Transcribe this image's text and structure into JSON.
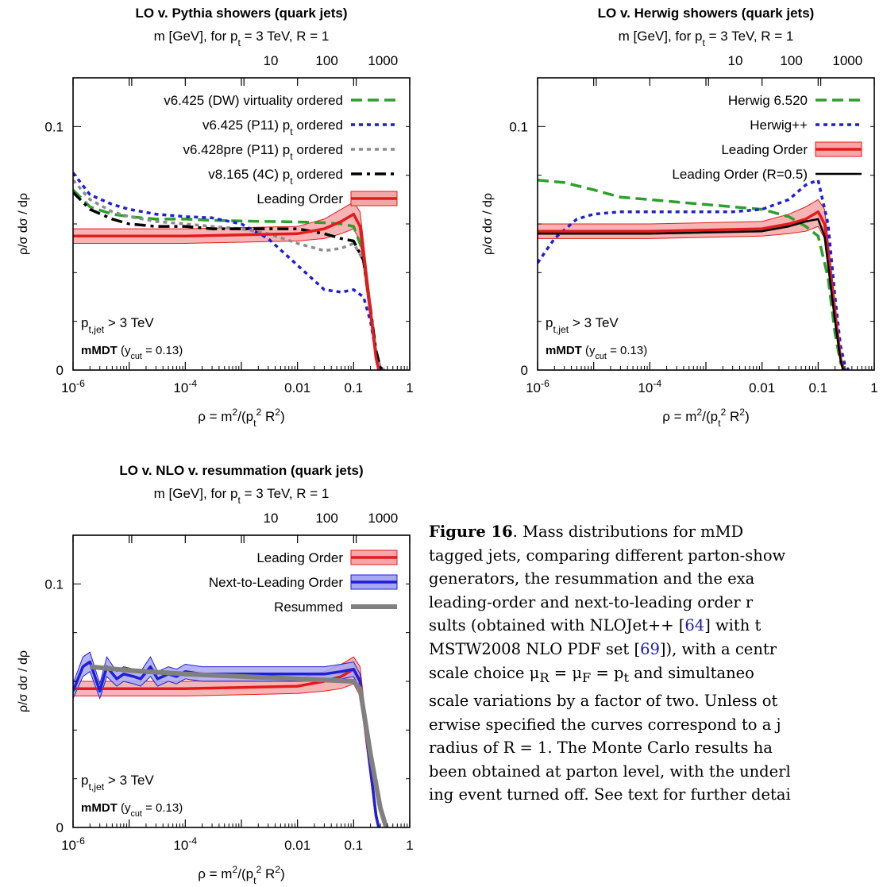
{
  "colors": {
    "lo_band": "#f4a7a7",
    "lo_line": "#e41a1c",
    "nlo_band": "#a8a8f0",
    "nlo_line": "#1f1fd6",
    "dw": "#2ca02c",
    "p11": "#1f1fd6",
    "p11pre": "#8c8c8c",
    "p8": "#000000",
    "herwig6": "#2ca02c",
    "herwigpp": "#1f1fd6",
    "resummed": "#808080"
  },
  "chart_data": [
    {
      "type": "line",
      "title": "LO v. Pythia showers (quark jets)",
      "xlabel": "ρ = m²/(p_t² R²)",
      "ylabel": "ρ/σ dσ / dρ",
      "x2label": "m [GeV], for p_t = 3 TeV, R = 1",
      "xscale": "log",
      "xlim": [
        1e-06,
        1
      ],
      "ylim": [
        0,
        0.12
      ],
      "x_ticklabels": [
        "10^-6",
        "10^-4",
        "0.01",
        "0.1",
        "1"
      ],
      "x2_ticklabels": [
        "10",
        "100",
        "1000"
      ],
      "y_ticklabels": [
        "0",
        "0.1"
      ],
      "annotations": [
        "p_t,jet > 3 TeV",
        "mMDT (y_cut = 0.13)"
      ],
      "legend_position": "top-right",
      "series": [
        {
          "name": "v6.425 (DW) virtuality ordered",
          "color": "#2ca02c",
          "style": "dashed",
          "x": [
            1e-06,
            2e-06,
            5e-06,
            1e-05,
            3e-05,
            0.0001,
            0.0003,
            0.001,
            0.003,
            0.01,
            0.03,
            0.06,
            0.1,
            0.15,
            0.2,
            0.25,
            0.3,
            0.35
          ],
          "y": [
            0.074,
            0.067,
            0.064,
            0.063,
            0.062,
            0.062,
            0.0615,
            0.0612,
            0.061,
            0.0608,
            0.0605,
            0.06,
            0.059,
            0.048,
            0.025,
            0.008,
            0.001,
            0
          ]
        },
        {
          "name": "v6.425 (P11) p_t ordered",
          "color": "#1f1fd6",
          "style": "dotted",
          "x": [
            1e-06,
            2e-06,
            5e-06,
            1e-05,
            3e-05,
            0.0001,
            0.0003,
            0.001,
            0.003,
            0.01,
            0.03,
            0.06,
            0.1,
            0.15,
            0.2,
            0.25,
            0.3,
            0.35
          ],
          "y": [
            0.081,
            0.072,
            0.068,
            0.066,
            0.064,
            0.063,
            0.0625,
            0.06,
            0.054,
            0.043,
            0.033,
            0.032,
            0.033,
            0.03,
            0.02,
            0.007,
            0.001,
            0
          ]
        },
        {
          "name": "v6.428pre (P11) p_t ordered",
          "color": "#8c8c8c",
          "style": "dotted",
          "x": [
            1e-06,
            2e-06,
            5e-06,
            1e-05,
            3e-05,
            0.0001,
            0.0003,
            0.001,
            0.003,
            0.01,
            0.03,
            0.06,
            0.1,
            0.15,
            0.2,
            0.25,
            0.3,
            0.35
          ],
          "y": [
            0.078,
            0.07,
            0.065,
            0.063,
            0.061,
            0.06,
            0.059,
            0.058,
            0.056,
            0.052,
            0.049,
            0.05,
            0.052,
            0.045,
            0.024,
            0.008,
            0.001,
            0
          ]
        },
        {
          "name": "v8.165 (4C) p_t ordered",
          "color": "#000000",
          "style": "dashdot",
          "x": [
            1e-06,
            2e-06,
            5e-06,
            1e-05,
            3e-05,
            0.0001,
            0.0003,
            0.001,
            0.003,
            0.01,
            0.03,
            0.06,
            0.1,
            0.15,
            0.2,
            0.25,
            0.3,
            0.35
          ],
          "y": [
            0.073,
            0.066,
            0.062,
            0.06,
            0.059,
            0.059,
            0.058,
            0.058,
            0.058,
            0.058,
            0.056,
            0.054,
            0.053,
            0.045,
            0.025,
            0.008,
            0.001,
            0
          ]
        },
        {
          "name": "Leading Order",
          "color": "#e41a1c",
          "style": "band",
          "x": [
            1e-06,
            1e-05,
            0.0001,
            0.001,
            0.01,
            0.03,
            0.06,
            0.1,
            0.13,
            0.2,
            0.25,
            0.28
          ],
          "y": [
            0.055,
            0.055,
            0.055,
            0.0555,
            0.056,
            0.058,
            0.061,
            0.064,
            0.059,
            0.024,
            0.005,
            0
          ],
          "y_low": [
            0.052,
            0.052,
            0.052,
            0.0525,
            0.053,
            0.054,
            0.056,
            0.058,
            0.053,
            0.02,
            0.003,
            0
          ],
          "y_high": [
            0.058,
            0.058,
            0.058,
            0.0585,
            0.059,
            0.062,
            0.066,
            0.069,
            0.065,
            0.028,
            0.007,
            0
          ]
        }
      ]
    },
    {
      "type": "line",
      "title": "LO v. Herwig showers (quark jets)",
      "xlabel": "ρ = m²/(p_t² R²)",
      "ylabel": "ρ/σ dσ / dρ",
      "x2label": "m [GeV], for p_t = 3 TeV, R = 1",
      "xscale": "log",
      "xlim": [
        1e-06,
        1
      ],
      "ylim": [
        0,
        0.12
      ],
      "x_ticklabels": [
        "10^-6",
        "10^-4",
        "0.01",
        "0.1",
        "1"
      ],
      "x2_ticklabels": [
        "10",
        "100",
        "1000"
      ],
      "y_ticklabels": [
        "0",
        "0.1"
      ],
      "annotations": [
        "p_t,jet > 3 TeV",
        "mMDT (y_cut = 0.13)"
      ],
      "legend_position": "top-right",
      "series": [
        {
          "name": "Herwig 6.520",
          "color": "#2ca02c",
          "style": "dashed",
          "x": [
            1e-06,
            3e-06,
            1e-05,
            3e-05,
            0.0001,
            0.0003,
            0.001,
            0.003,
            0.01,
            0.03,
            0.06,
            0.1,
            0.15,
            0.2,
            0.25,
            0.3
          ],
          "y": [
            0.078,
            0.077,
            0.074,
            0.071,
            0.07,
            0.069,
            0.068,
            0.067,
            0.066,
            0.063,
            0.059,
            0.055,
            0.038,
            0.015,
            0.003,
            0
          ]
        },
        {
          "name": "Herwig++",
          "color": "#1f1fd6",
          "style": "dotted",
          "x": [
            1e-06,
            2e-06,
            5e-06,
            1e-05,
            3e-05,
            0.0001,
            0.0003,
            0.001,
            0.003,
            0.01,
            0.03,
            0.06,
            0.1,
            0.15,
            0.2,
            0.25,
            0.3,
            0.35
          ],
          "y": [
            0.044,
            0.054,
            0.062,
            0.064,
            0.065,
            0.065,
            0.065,
            0.065,
            0.065,
            0.066,
            0.07,
            0.076,
            0.078,
            0.06,
            0.03,
            0.01,
            0.002,
            0
          ]
        },
        {
          "name": "Leading Order",
          "color": "#e41a1c",
          "style": "band",
          "x": [
            1e-06,
            1e-05,
            0.0001,
            0.001,
            0.01,
            0.03,
            0.06,
            0.1,
            0.13,
            0.2,
            0.25,
            0.28
          ],
          "y": [
            0.057,
            0.057,
            0.057,
            0.0575,
            0.058,
            0.06,
            0.062,
            0.065,
            0.06,
            0.024,
            0.005,
            0
          ],
          "y_low": [
            0.054,
            0.054,
            0.054,
            0.0545,
            0.055,
            0.056,
            0.057,
            0.059,
            0.054,
            0.02,
            0.003,
            0
          ],
          "y_high": [
            0.06,
            0.06,
            0.06,
            0.0605,
            0.061,
            0.064,
            0.067,
            0.07,
            0.066,
            0.028,
            0.007,
            0
          ]
        },
        {
          "name": "Leading Order (R=0.5)",
          "color": "#000000",
          "style": "solid",
          "x": [
            1e-06,
            1e-05,
            0.0001,
            0.001,
            0.01,
            0.03,
            0.06,
            0.1,
            0.13,
            0.2,
            0.25,
            0.28
          ],
          "y": [
            0.056,
            0.056,
            0.056,
            0.0565,
            0.057,
            0.059,
            0.061,
            0.062,
            0.055,
            0.02,
            0.004,
            0
          ]
        }
      ]
    },
    {
      "type": "line",
      "title": "LO v. NLO v. resummation (quark jets)",
      "xlabel": "ρ = m²/(p_t² R²)",
      "ylabel": "ρ/σ dσ / dρ",
      "x2label": "m [GeV], for p_t = 3 TeV, R = 1",
      "xscale": "log",
      "xlim": [
        1e-06,
        1
      ],
      "ylim": [
        0,
        0.12
      ],
      "x_ticklabels": [
        "10^-6",
        "10^-4",
        "0.01",
        "0.1",
        "1"
      ],
      "x2_ticklabels": [
        "10",
        "100",
        "1000"
      ],
      "y_ticklabels": [
        "0",
        "0.1"
      ],
      "annotations": [
        "p_t,jet > 3 TeV",
        "mMDT (y_cut = 0.13)"
      ],
      "legend_position": "top-right",
      "series": [
        {
          "name": "Leading Order",
          "color": "#e41a1c",
          "style": "band",
          "x": [
            1e-06,
            1e-05,
            0.0001,
            0.001,
            0.01,
            0.03,
            0.06,
            0.1,
            0.13,
            0.2,
            0.25,
            0.28
          ],
          "y": [
            0.057,
            0.057,
            0.057,
            0.0575,
            0.058,
            0.06,
            0.062,
            0.065,
            0.06,
            0.024,
            0.005,
            0
          ],
          "y_low": [
            0.054,
            0.054,
            0.054,
            0.0545,
            0.055,
            0.056,
            0.057,
            0.059,
            0.054,
            0.02,
            0.003,
            0
          ],
          "y_high": [
            0.06,
            0.06,
            0.06,
            0.0605,
            0.061,
            0.064,
            0.067,
            0.07,
            0.066,
            0.028,
            0.007,
            0
          ]
        },
        {
          "name": "Next-to-Leading Order",
          "color": "#1f1fd6",
          "style": "band",
          "x": [
            1e-06,
            1.5e-06,
            2e-06,
            3e-06,
            4e-06,
            6e-06,
            8e-06,
            1.2e-05,
            1.6e-05,
            2.4e-05,
            3.2e-05,
            5e-05,
            7e-05,
            0.0001,
            0.0002,
            0.0004,
            0.001,
            0.003,
            0.01,
            0.03,
            0.06,
            0.1,
            0.13,
            0.2,
            0.25,
            0.28
          ],
          "y": [
            0.056,
            0.066,
            0.068,
            0.056,
            0.066,
            0.061,
            0.063,
            0.062,
            0.061,
            0.066,
            0.061,
            0.063,
            0.062,
            0.064,
            0.063,
            0.063,
            0.063,
            0.063,
            0.063,
            0.063,
            0.064,
            0.065,
            0.06,
            0.024,
            0.005,
            0
          ],
          "y_low": [
            0.053,
            0.062,
            0.064,
            0.053,
            0.062,
            0.058,
            0.06,
            0.059,
            0.058,
            0.062,
            0.058,
            0.06,
            0.059,
            0.061,
            0.06,
            0.06,
            0.06,
            0.06,
            0.06,
            0.06,
            0.061,
            0.062,
            0.057,
            0.022,
            0.004,
            0
          ],
          "y_high": [
            0.059,
            0.07,
            0.072,
            0.059,
            0.07,
            0.064,
            0.066,
            0.065,
            0.064,
            0.07,
            0.064,
            0.066,
            0.065,
            0.067,
            0.066,
            0.066,
            0.066,
            0.066,
            0.066,
            0.066,
            0.067,
            0.068,
            0.063,
            0.026,
            0.006,
            0
          ]
        },
        {
          "name": "Resummed",
          "color": "#808080",
          "style": "solid",
          "x": [
            2e-06,
            1e-05,
            0.0001,
            0.001,
            0.01,
            0.1,
            0.13,
            0.2,
            0.3,
            0.38
          ],
          "y": [
            0.066,
            0.0645,
            0.063,
            0.062,
            0.061,
            0.06,
            0.057,
            0.03,
            0.008,
            0
          ]
        }
      ]
    }
  ],
  "caption": {
    "lines": [
      [
        {
          "t": "Figure 16",
          "b": true
        },
        {
          "t": ".   Mass distributions for mMD"
        }
      ],
      [
        {
          "t": "tagged jets, comparing different parton-show"
        }
      ],
      [
        {
          "t": "generators,  the  resummation  and  the  exa"
        }
      ],
      [
        {
          "t": "leading-order  and  next-to-leading  order  r"
        }
      ],
      [
        {
          "t": "sults (obtained with NLOJet++ ["
        },
        {
          "t": "64",
          "c": true
        },
        {
          "t": "] with t"
        }
      ],
      [
        {
          "t": "MSTW2008 NLO PDF set ["
        },
        {
          "t": "69",
          "c": true
        },
        {
          "t": "]), with a centr"
        }
      ],
      [
        {
          "t": "scale choice μ"
        },
        {
          "t": "R",
          "s": true
        },
        {
          "t": " = μ"
        },
        {
          "t": "F",
          "s": true
        },
        {
          "t": " = p"
        },
        {
          "t": "t",
          "s": true
        },
        {
          "t": " and simultaneo"
        }
      ],
      [
        {
          "t": "scale variations by a factor of two.  Unless ot"
        }
      ],
      [
        {
          "t": "erwise specified the curves correspond to a j"
        }
      ],
      [
        {
          "t": "radius of R = 1.  The Monte Carlo results ha"
        }
      ],
      [
        {
          "t": "been obtained at parton level, with the underl"
        }
      ],
      [
        {
          "t": "ing event turned off. See text for further detai"
        }
      ]
    ]
  }
}
